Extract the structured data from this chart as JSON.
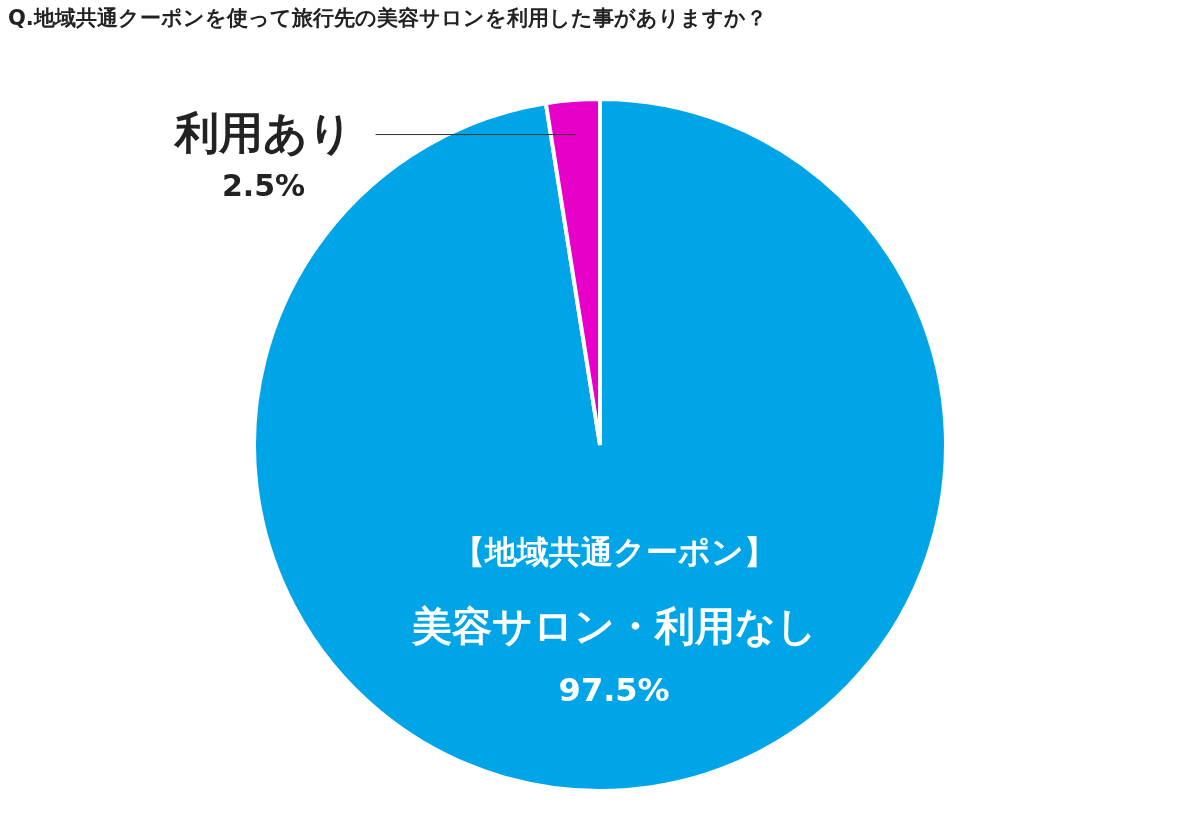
{
  "chart_data": {
    "type": "pie",
    "title": "Q.地域共通クーポンを使って旅行先の美容サロンを利用した事がありますか？",
    "categories": [
      "美容サロン・利用なし",
      "利用あり"
    ],
    "annotations": [
      "【地域共通クーポン】"
    ],
    "values": [
      97.5,
      2.5
    ],
    "colors": [
      "#00a5e8",
      "#e600c8"
    ],
    "value_labels": [
      "97.5%",
      "2.5%"
    ],
    "legend": false
  }
}
